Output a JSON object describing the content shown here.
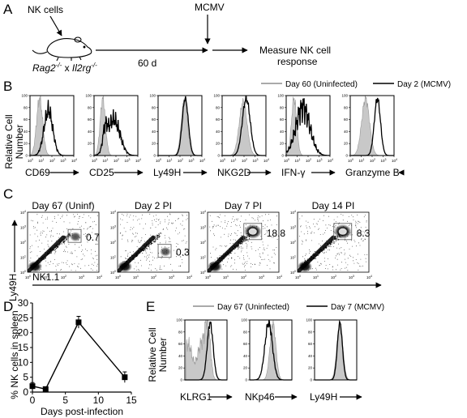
{
  "panel_a": {
    "label": "A",
    "cells_label": "NK cells",
    "mouse_label_1": "Rag2",
    "mouse_sup_1": "-/-",
    "mouse_label_mid": " x ",
    "mouse_label_2": "Il2rg",
    "mouse_sup_2": "-/-",
    "wait_label": "60 d",
    "infection_label": "MCMV",
    "outcome_label_1": "Measure NK cell",
    "outcome_label_2": "response"
  },
  "panel_b": {
    "label": "B",
    "ylabel_1": "Relative Cell",
    "ylabel_2": "Number",
    "legend_gray": "Day 60 (Uninfected)",
    "legend_black": "Day 2 (MCMV)",
    "y_ticks": [
      "100",
      "80",
      "60",
      "40",
      "20",
      "0"
    ],
    "x_ticks_sup": [
      "0",
      "1",
      "2",
      "3",
      "4"
    ],
    "x_ticks_base": "10",
    "markers": [
      "CD69",
      "CD25",
      "Ly49H",
      "NKG2D",
      "IFN-γ",
      "Granzyme B"
    ],
    "colors": {
      "gray_fill": "#c8c8c8",
      "black_line": "#000000"
    }
  },
  "panel_c": {
    "label": "C",
    "ylabel": "Ly49H",
    "xlabel": "NK1.1",
    "plots": [
      {
        "title": "Day 67 (Uninf)",
        "gate_value": "0.7"
      },
      {
        "title": "Day 2 PI",
        "gate_value": "0.3"
      },
      {
        "title": "Day 7 PI",
        "gate_value": "18.8"
      },
      {
        "title": "Day 14 PI",
        "gate_value": "8.3"
      }
    ],
    "ticks_sup": [
      "0",
      "1",
      "2",
      "3",
      "4"
    ],
    "ticks_base": "10"
  },
  "panel_d": {
    "label": "D",
    "chart_data": {
      "type": "line",
      "x": [
        0,
        2,
        7,
        14
      ],
      "y": [
        2.0,
        1.0,
        23.5,
        5.0
      ],
      "error": [
        1.2,
        0.5,
        2.0,
        1.8
      ],
      "xlabel": "Days post-infection",
      "ylabel": "% NK cells in spleen",
      "xlim": [
        0,
        15
      ],
      "ylim": [
        0,
        30
      ],
      "x_ticks": [
        "0",
        "5",
        "10",
        "15"
      ],
      "y_ticks": [
        "0",
        "5",
        "10",
        "15",
        "20",
        "25",
        "30"
      ]
    }
  },
  "panel_e": {
    "label": "E",
    "ylabel_1": "Relative Cell",
    "ylabel_2": "Number",
    "legend_gray": "Day 67 (Uninfected)",
    "legend_black": "Day 7 (MCMV)",
    "y_ticks": [
      "100",
      "80",
      "60",
      "40",
      "20",
      "0"
    ],
    "markers": [
      "KLRG1",
      "NKp46",
      "Ly49H"
    ],
    "colors": {
      "gray_fill": "#c8c8c8",
      "black_line": "#000000"
    }
  }
}
